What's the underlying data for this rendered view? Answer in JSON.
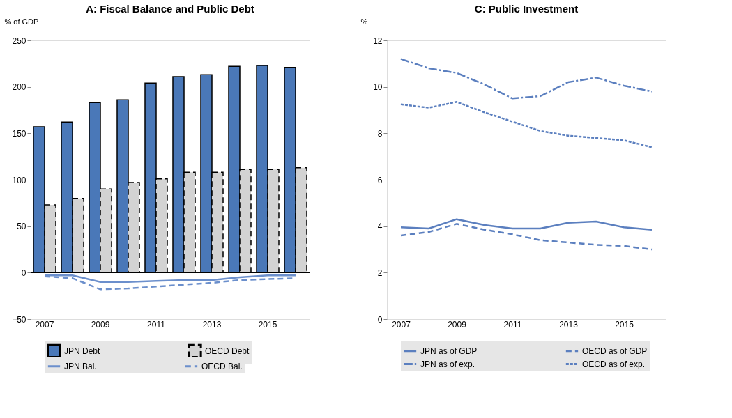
{
  "chart_data": [
    {
      "type": "bar",
      "title": "A: Fiscal Balance and Public Debt",
      "ylabel": "% of GDP",
      "categories": [
        "2007",
        null,
        "2009",
        null,
        "2011",
        null,
        "2013",
        null,
        "2015",
        null
      ],
      "series": [
        {
          "name": "JPN Debt",
          "type": "bar",
          "color": "#4a78b8",
          "line_style": "solid",
          "values": [
            157,
            162,
            183,
            186,
            204,
            211,
            213,
            222,
            223,
            221
          ]
        },
        {
          "name": "OECD Debt",
          "type": "bar",
          "color": "#d3d3d3",
          "line_style": "dashed",
          "values": [
            73,
            80,
            90,
            97,
            101,
            108,
            108,
            111,
            111,
            113
          ]
        },
        {
          "name": "JPN Bal.",
          "type": "line",
          "color": "#6b8fcc",
          "line_style": "solid",
          "values": [
            -3,
            -3,
            -10,
            -10,
            -9,
            -8,
            -8,
            -5,
            -3,
            -3
          ]
        },
        {
          "name": "OECD Bal.",
          "type": "line",
          "color": "#6b8fcc",
          "line_style": "dashed",
          "values": [
            -4,
            -6,
            -18,
            -17,
            -15,
            -13,
            -11,
            -8,
            -7,
            -6
          ]
        }
      ],
      "ylim": [
        -50,
        250
      ],
      "yticks": [
        -50,
        0,
        50,
        100,
        150,
        200,
        250
      ],
      "ref_lines": [
        {
          "axis": "y",
          "value": 0,
          "color": "#000000"
        }
      ],
      "legend": "bottom",
      "grid": false
    },
    {
      "type": "line",
      "title": "C: Public Investment",
      "ylabel": "%",
      "categories": [
        "2007",
        null,
        "2009",
        null,
        "2011",
        null,
        "2013",
        null,
        "2015",
        null
      ],
      "series": [
        {
          "name": "JPN as of GDP",
          "color": "#5b7fbf",
          "line_style": "solid",
          "values": [
            3.95,
            3.9,
            4.3,
            4.05,
            3.9,
            3.9,
            4.15,
            4.2,
            3.95,
            3.85
          ]
        },
        {
          "name": "OECD as of GDP",
          "color": "#5b7fbf",
          "line_style": "dashed",
          "values": [
            3.6,
            3.75,
            4.1,
            3.85,
            3.65,
            3.4,
            3.3,
            3.2,
            3.15,
            3.0
          ]
        },
        {
          "name": "JPN as of exp.",
          "color": "#5b7fbf",
          "line_style": "dashdot",
          "values": [
            11.2,
            10.8,
            10.6,
            10.1,
            9.5,
            9.6,
            10.2,
            10.4,
            10.05,
            9.8
          ]
        },
        {
          "name": "OECD as of exp.",
          "color": "#5b7fbf",
          "line_style": "dotted",
          "values": [
            9.25,
            9.1,
            9.35,
            8.9,
            8.5,
            8.1,
            7.9,
            7.8,
            7.7,
            7.4
          ]
        }
      ],
      "ylim": [
        0,
        12
      ],
      "yticks": [
        0,
        2,
        4,
        6,
        8,
        10,
        12
      ],
      "legend": "bottom",
      "grid": false
    }
  ]
}
